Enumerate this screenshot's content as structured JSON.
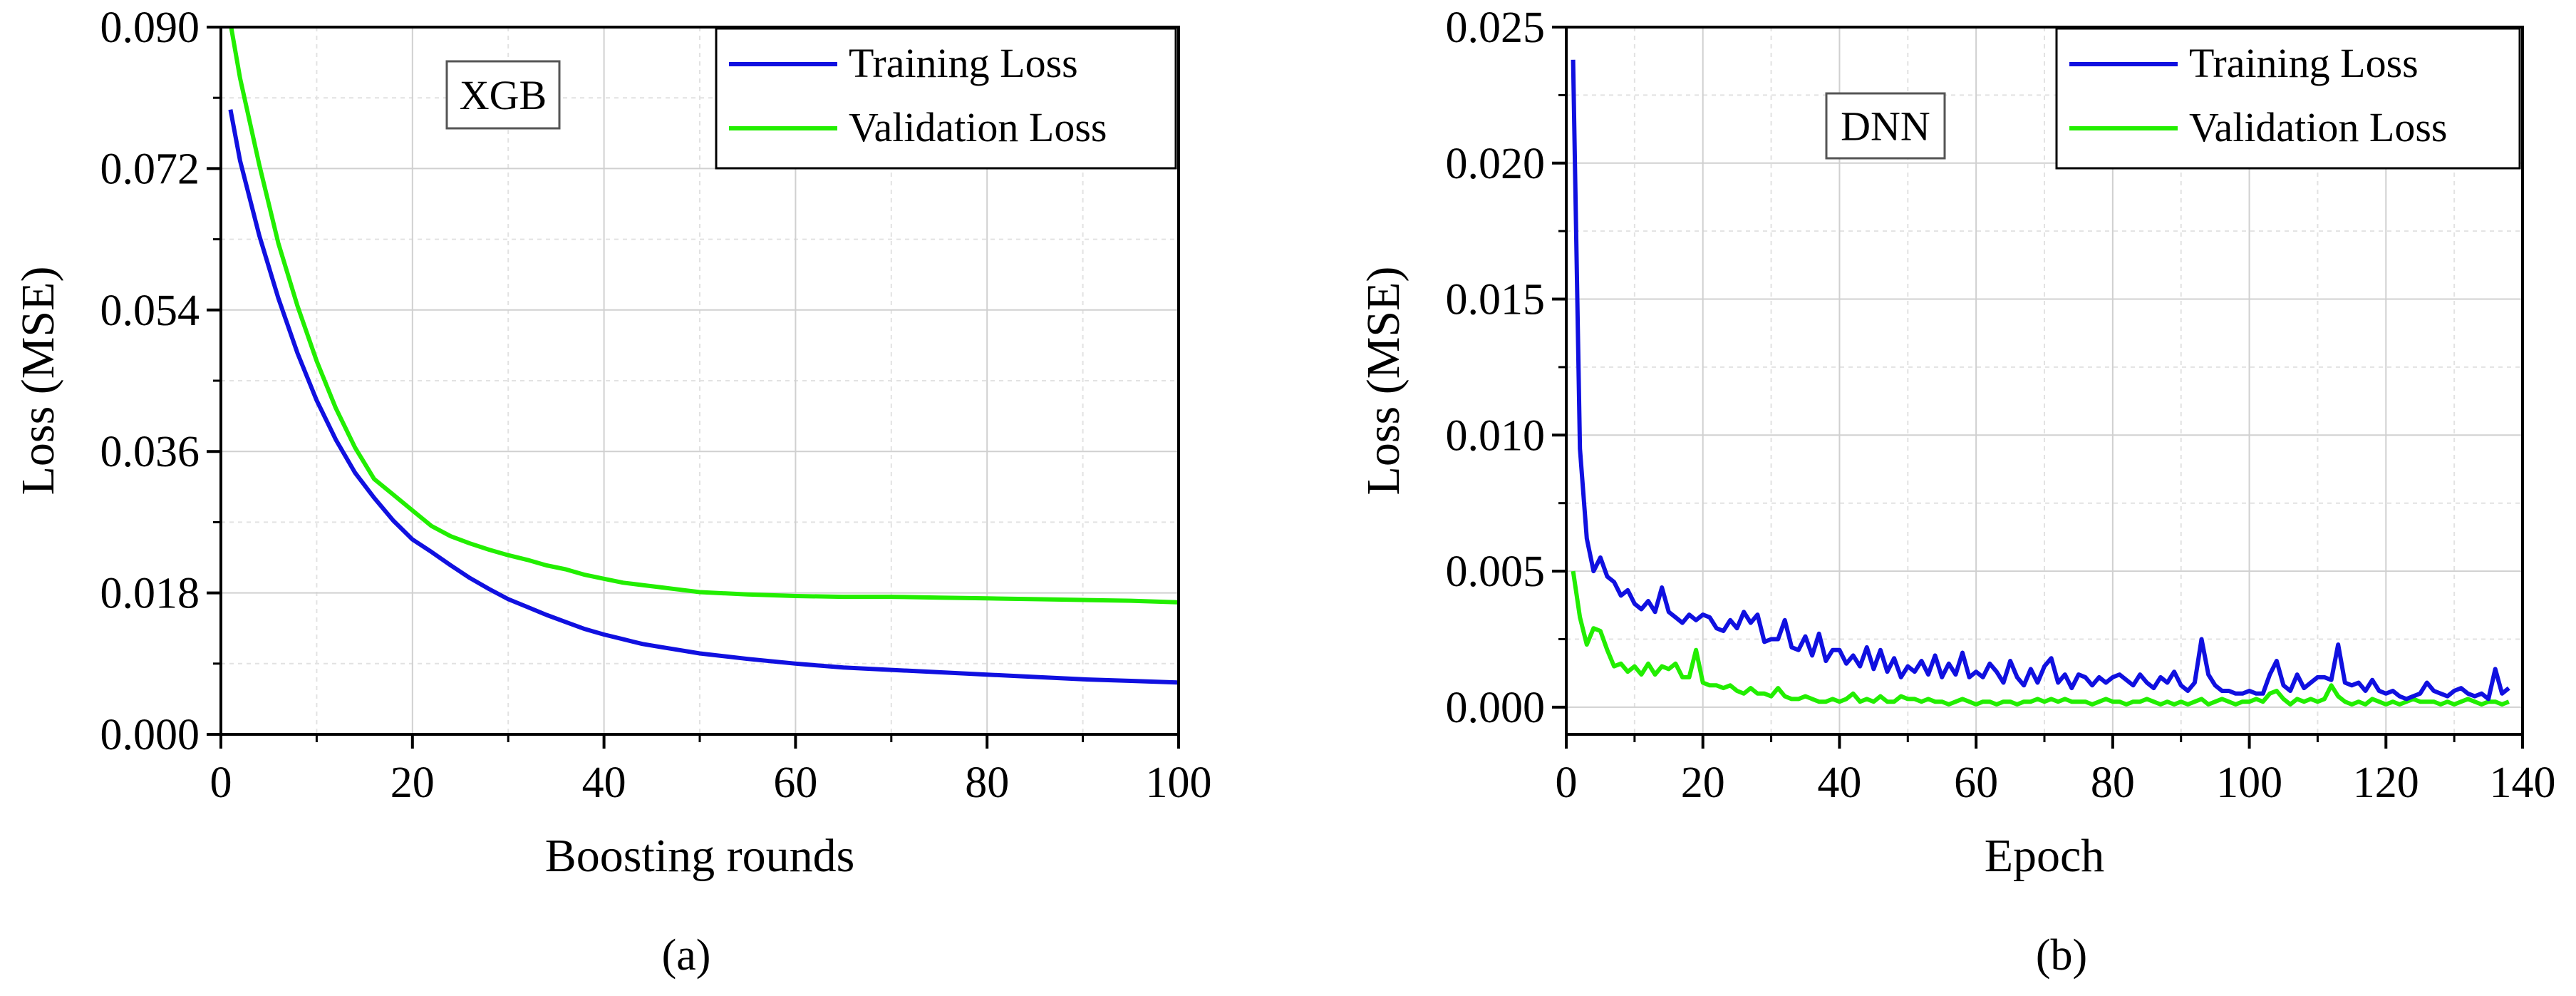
{
  "figure": {
    "panels": [
      {
        "caption": "(a)",
        "annotation": "XGB",
        "xlabel": "Boosting rounds",
        "ylabel": "Loss (MSE)",
        "x_tick_labels": [
          "0",
          "20",
          "40",
          "60",
          "80",
          "100"
        ],
        "y_tick_labels": [
          "0.000",
          "0.018",
          "0.036",
          "0.054",
          "0.072",
          "0.090"
        ],
        "legend": [
          "Training Loss",
          "Validation Loss"
        ]
      },
      {
        "caption": "(b)",
        "annotation": "DNN",
        "xlabel": "Epoch",
        "ylabel": "Loss (MSE)",
        "x_tick_labels": [
          "0",
          "20",
          "40",
          "60",
          "80",
          "100",
          "120",
          "140"
        ],
        "y_tick_labels": [
          "0.000",
          "0.005",
          "0.010",
          "0.015",
          "0.020",
          "0.025"
        ],
        "legend": [
          "Training Loss",
          "Validation Loss"
        ]
      }
    ]
  },
  "colors": {
    "training": "#1010e0",
    "validation": "#22ee00",
    "grid": "#d0d0d0",
    "axes": "#000000"
  },
  "chart_data": [
    {
      "type": "line",
      "title": "",
      "annotation": "XGB",
      "xlabel": "Boosting rounds",
      "ylabel": "Loss (MSE)",
      "xlim": [
        0,
        100
      ],
      "ylim": [
        0,
        0.09
      ],
      "x_ticks": [
        0,
        20,
        40,
        60,
        80,
        100
      ],
      "y_ticks": [
        0,
        0.018,
        0.036,
        0.054,
        0.072,
        0.09
      ],
      "grid": true,
      "legend_position": "top-right",
      "series": [
        {
          "name": "Training Loss",
          "x": [
            1,
            2,
            4,
            6,
            8,
            10,
            12,
            14,
            16,
            18,
            20,
            22,
            24,
            26,
            28,
            30,
            32,
            34,
            36,
            38,
            40,
            42,
            44,
            46,
            48,
            50,
            55,
            60,
            65,
            70,
            75,
            80,
            85,
            90,
            95,
            100
          ],
          "y": [
            0.0795,
            0.073,
            0.0635,
            0.0555,
            0.0485,
            0.0425,
            0.0375,
            0.0333,
            0.0301,
            0.0272,
            0.0248,
            0.0232,
            0.0215,
            0.0199,
            0.0185,
            0.0172,
            0.0162,
            0.0152,
            0.0143,
            0.0134,
            0.0127,
            0.0121,
            0.0115,
            0.0111,
            0.0107,
            0.0103,
            0.0096,
            0.009,
            0.0085,
            0.0082,
            0.0079,
            0.0076,
            0.0073,
            0.007,
            0.0068,
            0.0066
          ]
        },
        {
          "name": "Validation Loss",
          "x": [
            1,
            2,
            4,
            6,
            8,
            10,
            12,
            14,
            16,
            18,
            20,
            22,
            24,
            26,
            28,
            30,
            32,
            34,
            36,
            38,
            40,
            42,
            44,
            46,
            48,
            50,
            55,
            60,
            65,
            70,
            75,
            80,
            85,
            90,
            95,
            100
          ],
          "y": [
            0.0905,
            0.0835,
            0.0725,
            0.0625,
            0.0545,
            0.0475,
            0.0415,
            0.0365,
            0.0325,
            0.0305,
            0.0285,
            0.0265,
            0.0252,
            0.0243,
            0.0235,
            0.0228,
            0.0222,
            0.0215,
            0.021,
            0.0203,
            0.0198,
            0.0193,
            0.019,
            0.0187,
            0.0184,
            0.0181,
            0.0178,
            0.0176,
            0.0175,
            0.0175,
            0.0174,
            0.0173,
            0.0172,
            0.0171,
            0.017,
            0.0168
          ]
        }
      ]
    },
    {
      "type": "line",
      "title": "",
      "annotation": "DNN",
      "xlabel": "Epoch",
      "ylabel": "Loss (MSE)",
      "xlim": [
        0,
        140
      ],
      "ylim": [
        -0.001,
        0.025
      ],
      "x_ticks": [
        0,
        20,
        40,
        60,
        80,
        100,
        120,
        140
      ],
      "y_ticks": [
        0,
        0.005,
        0.01,
        0.015,
        0.02,
        0.025
      ],
      "grid": true,
      "legend_position": "top-right",
      "series": [
        {
          "name": "Training Loss",
          "x": [
            1,
            2,
            3,
            4,
            5,
            6,
            7,
            8,
            9,
            10,
            11,
            12,
            13,
            14,
            15,
            16,
            17,
            18,
            19,
            20,
            21,
            22,
            23,
            24,
            25,
            26,
            27,
            28,
            29,
            30,
            31,
            32,
            33,
            34,
            35,
            36,
            37,
            38,
            39,
            40,
            41,
            42,
            43,
            44,
            45,
            46,
            47,
            48,
            49,
            50,
            51,
            52,
            53,
            54,
            55,
            56,
            57,
            58,
            59,
            60,
            61,
            62,
            63,
            64,
            65,
            66,
            67,
            68,
            69,
            70,
            71,
            72,
            73,
            74,
            75,
            76,
            77,
            78,
            79,
            80,
            81,
            82,
            83,
            84,
            85,
            86,
            87,
            88,
            89,
            90,
            91,
            92,
            93,
            94,
            95,
            96,
            97,
            98,
            99,
            100,
            101,
            102,
            103,
            104,
            105,
            106,
            107,
            108,
            109,
            110,
            111,
            112,
            113,
            114,
            115,
            116,
            117,
            118,
            119,
            120,
            121,
            122,
            123,
            124,
            125,
            126,
            127,
            128,
            129,
            130,
            131,
            132,
            133,
            134,
            135,
            136,
            137,
            138
          ],
          "y": [
            0.0238,
            0.0095,
            0.0062,
            0.005,
            0.0055,
            0.0048,
            0.0046,
            0.0041,
            0.0043,
            0.0038,
            0.0036,
            0.0039,
            0.0035,
            0.0044,
            0.0035,
            0.0033,
            0.0031,
            0.0034,
            0.0032,
            0.0034,
            0.0033,
            0.0029,
            0.0028,
            0.0032,
            0.0029,
            0.0035,
            0.0031,
            0.0034,
            0.0024,
            0.0025,
            0.0025,
            0.0032,
            0.0022,
            0.0021,
            0.0026,
            0.0019,
            0.0027,
            0.0017,
            0.0021,
            0.0021,
            0.0016,
            0.0019,
            0.0015,
            0.0022,
            0.0014,
            0.0021,
            0.0013,
            0.0018,
            0.0011,
            0.0015,
            0.0013,
            0.0017,
            0.0012,
            0.0019,
            0.0011,
            0.0016,
            0.0012,
            0.002,
            0.0011,
            0.0013,
            0.0011,
            0.0016,
            0.0013,
            0.0009,
            0.0017,
            0.0011,
            0.0008,
            0.0014,
            0.0009,
            0.0015,
            0.0018,
            0.0009,
            0.0012,
            0.0007,
            0.0012,
            0.0011,
            0.0008,
            0.0011,
            0.0009,
            0.0011,
            0.0012,
            0.001,
            0.0008,
            0.0012,
            0.0009,
            0.0007,
            0.0011,
            0.0009,
            0.0013,
            0.0008,
            0.0006,
            0.0009,
            0.0025,
            0.0012,
            0.0008,
            0.0006,
            0.0006,
            0.0005,
            0.0005,
            0.0006,
            0.0005,
            0.0005,
            0.0012,
            0.0017,
            0.0008,
            0.0006,
            0.0012,
            0.0007,
            0.0009,
            0.0011,
            0.0011,
            0.001,
            0.0023,
            0.0009,
            0.0008,
            0.0009,
            0.0006,
            0.001,
            0.0006,
            0.0005,
            0.0006,
            0.0004,
            0.0003,
            0.0004,
            0.0005,
            0.0009,
            0.0006,
            0.0005,
            0.0004,
            0.0006,
            0.0007,
            0.0005,
            0.0004,
            0.0005,
            0.0003,
            0.0014,
            0.0005,
            0.0007
          ]
        },
        {
          "name": "Validation Loss",
          "x": [
            1,
            2,
            3,
            4,
            5,
            6,
            7,
            8,
            9,
            10,
            11,
            12,
            13,
            14,
            15,
            16,
            17,
            18,
            19,
            20,
            21,
            22,
            23,
            24,
            25,
            26,
            27,
            28,
            29,
            30,
            31,
            32,
            33,
            34,
            35,
            36,
            37,
            38,
            39,
            40,
            41,
            42,
            43,
            44,
            45,
            46,
            47,
            48,
            49,
            50,
            51,
            52,
            53,
            54,
            55,
            56,
            57,
            58,
            59,
            60,
            61,
            62,
            63,
            64,
            65,
            66,
            67,
            68,
            69,
            70,
            71,
            72,
            73,
            74,
            75,
            76,
            77,
            78,
            79,
            80,
            81,
            82,
            83,
            84,
            85,
            86,
            87,
            88,
            89,
            90,
            91,
            92,
            93,
            94,
            95,
            96,
            97,
            98,
            99,
            100,
            101,
            102,
            103,
            104,
            105,
            106,
            107,
            108,
            109,
            110,
            111,
            112,
            113,
            114,
            115,
            116,
            117,
            118,
            119,
            120,
            121,
            122,
            123,
            124,
            125,
            126,
            127,
            128,
            129,
            130,
            131,
            132,
            133,
            134,
            135,
            136,
            137,
            138
          ],
          "y": [
            0.005,
            0.0033,
            0.0023,
            0.0029,
            0.0028,
            0.0021,
            0.0015,
            0.0016,
            0.0013,
            0.0015,
            0.0012,
            0.0016,
            0.0012,
            0.0015,
            0.0014,
            0.0016,
            0.0011,
            0.0011,
            0.0021,
            0.0009,
            0.0008,
            0.0008,
            0.0007,
            0.0008,
            0.0006,
            0.0005,
            0.0007,
            0.0005,
            0.0005,
            0.0004,
            0.0007,
            0.0004,
            0.0003,
            0.0003,
            0.0004,
            0.0003,
            0.0002,
            0.0002,
            0.0003,
            0.0002,
            0.0003,
            0.0005,
            0.0002,
            0.0003,
            0.0002,
            0.0004,
            0.0002,
            0.0002,
            0.0004,
            0.0003,
            0.0003,
            0.0002,
            0.0003,
            0.0002,
            0.0002,
            0.0001,
            0.0002,
            0.0003,
            0.0002,
            0.0001,
            0.0002,
            0.0002,
            0.0001,
            0.0002,
            0.0002,
            0.0001,
            0.0002,
            0.0002,
            0.0003,
            0.0002,
            0.0003,
            0.0002,
            0.0003,
            0.0002,
            0.0002,
            0.0002,
            0.0001,
            0.0002,
            0.0003,
            0.0002,
            0.0002,
            0.0001,
            0.0002,
            0.0002,
            0.0003,
            0.0002,
            0.0001,
            0.0002,
            0.0001,
            0.0002,
            0.0001,
            0.0002,
            0.0003,
            0.0001,
            0.0002,
            0.0003,
            0.0002,
            0.0001,
            0.0002,
            0.0002,
            0.0003,
            0.0002,
            0.0005,
            0.0006,
            0.0003,
            0.0001,
            0.0003,
            0.0002,
            0.0003,
            0.0002,
            0.0003,
            0.0008,
            0.0004,
            0.0002,
            0.0001,
            0.0002,
            0.0001,
            0.0003,
            0.0002,
            0.0001,
            0.0002,
            0.0001,
            0.0002,
            0.0003,
            0.0002,
            0.0002,
            0.0002,
            0.0001,
            0.0002,
            0.0001,
            0.0002,
            0.0003,
            0.0002,
            0.0001,
            0.0002,
            0.0002,
            0.0001,
            0.0002
          ]
        }
      ]
    }
  ]
}
